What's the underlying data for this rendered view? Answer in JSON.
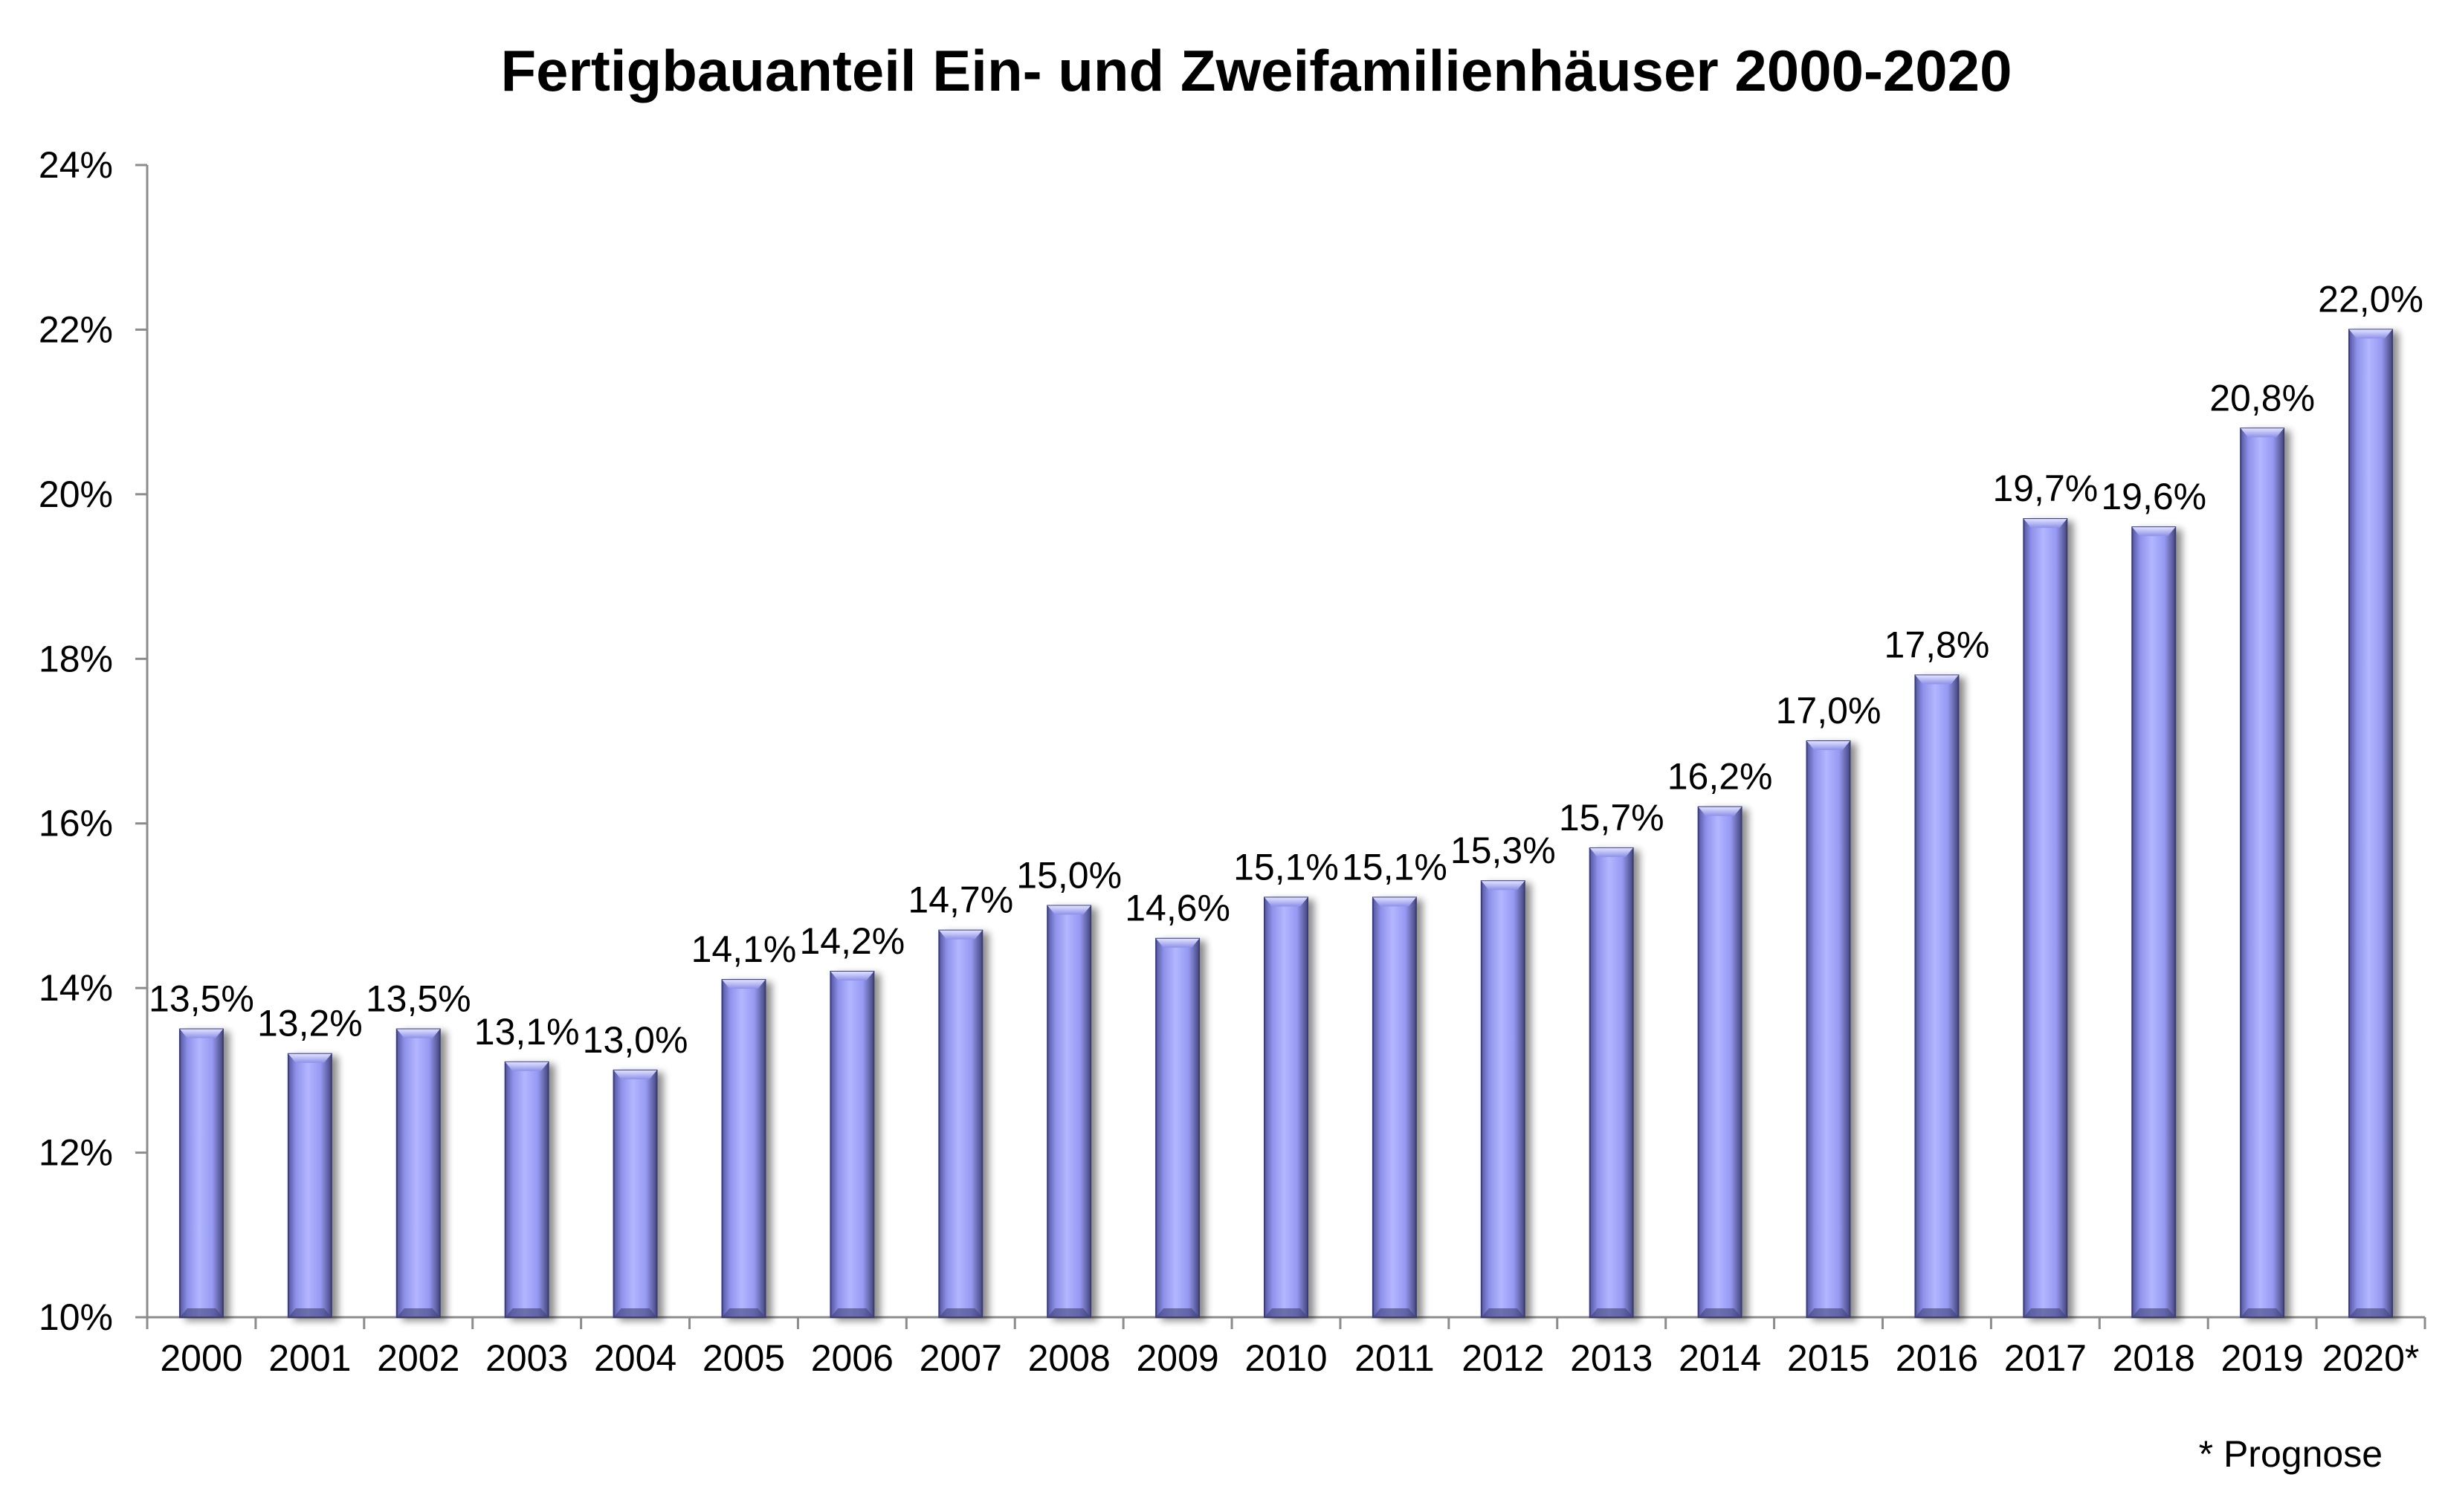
{
  "chart_data": {
    "type": "bar",
    "title": "Fertigbauanteil Ein- und Zweifamilienhäuser 2000-2020",
    "xlabel": "",
    "ylabel": "",
    "categories": [
      "2000",
      "2001",
      "2002",
      "2003",
      "2004",
      "2005",
      "2006",
      "2007",
      "2008",
      "2009",
      "2010",
      "2011",
      "2012",
      "2013",
      "2014",
      "2015",
      "2016",
      "2017",
      "2018",
      "2019",
      "2020*"
    ],
    "values": [
      13.5,
      13.2,
      13.5,
      13.1,
      13.0,
      14.1,
      14.2,
      14.7,
      15.0,
      14.6,
      15.1,
      15.1,
      15.3,
      15.7,
      16.2,
      17.0,
      17.8,
      19.7,
      19.6,
      20.8,
      22.0
    ],
    "data_labels": [
      "13,5%",
      "13,2%",
      "13,5%",
      "13,1%",
      "13,0%",
      "14,1%",
      "14,2%",
      "14,7%",
      "15,0%",
      "14,6%",
      "15,1%",
      "15,1%",
      "15,3%",
      "15,7%",
      "16,2%",
      "17,0%",
      "17,8%",
      "19,7%",
      "19,6%",
      "20,8%",
      "22,0%"
    ],
    "ylim": [
      10,
      24
    ],
    "yticks": [
      10,
      12,
      14,
      16,
      18,
      20,
      22,
      24
    ],
    "ytick_labels": [
      "10%",
      "12%",
      "14%",
      "16%",
      "18%",
      "20%",
      "22%",
      "24%"
    ],
    "grid": false,
    "legend": "none",
    "bar_color": "#9b9ef5",
    "bar_edge_color": "#3a3c7a",
    "footnote": "* Prognose"
  }
}
